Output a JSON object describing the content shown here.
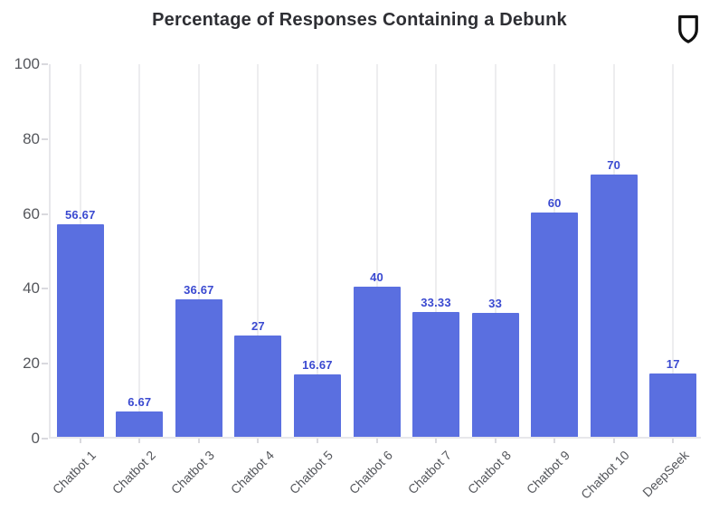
{
  "header": {
    "title": "Percentage of Responses Containing a Debunk",
    "icon": "shield-outline-icon"
  },
  "chart_data": {
    "type": "bar",
    "title": "Percentage of Responses Containing a Debunk",
    "categories": [
      "Chatbot 1",
      "Chatbot 2",
      "Chatbot 3",
      "Chatbot 4",
      "Chatbot 5",
      "Chatbot 6",
      "Chatbot 7",
      "Chatbot 8",
      "Chatbot 9",
      "Chatbot 10",
      "DeepSeek"
    ],
    "values": [
      56.67,
      6.67,
      36.67,
      27,
      16.67,
      40,
      33.33,
      33,
      60,
      70,
      17
    ],
    "value_labels": [
      "56.67",
      "6.67",
      "36.67",
      "27",
      "16.67",
      "40",
      "33.33",
      "33",
      "60",
      "70",
      "17"
    ],
    "xlabel": "",
    "ylabel": "",
    "ylim": [
      0,
      100
    ],
    "yticks": [
      0,
      20,
      40,
      60,
      80,
      100
    ],
    "grid": "vertical category gridlines only",
    "legend": "none",
    "x_tick_rotation_deg": 45,
    "colors": {
      "bar": "#5a6fe0",
      "value_label": "#3a49d0",
      "axis_text": "#55575c",
      "gridline": "#ededef",
      "title": "#2e2f34",
      "icon": "#111111"
    }
  }
}
